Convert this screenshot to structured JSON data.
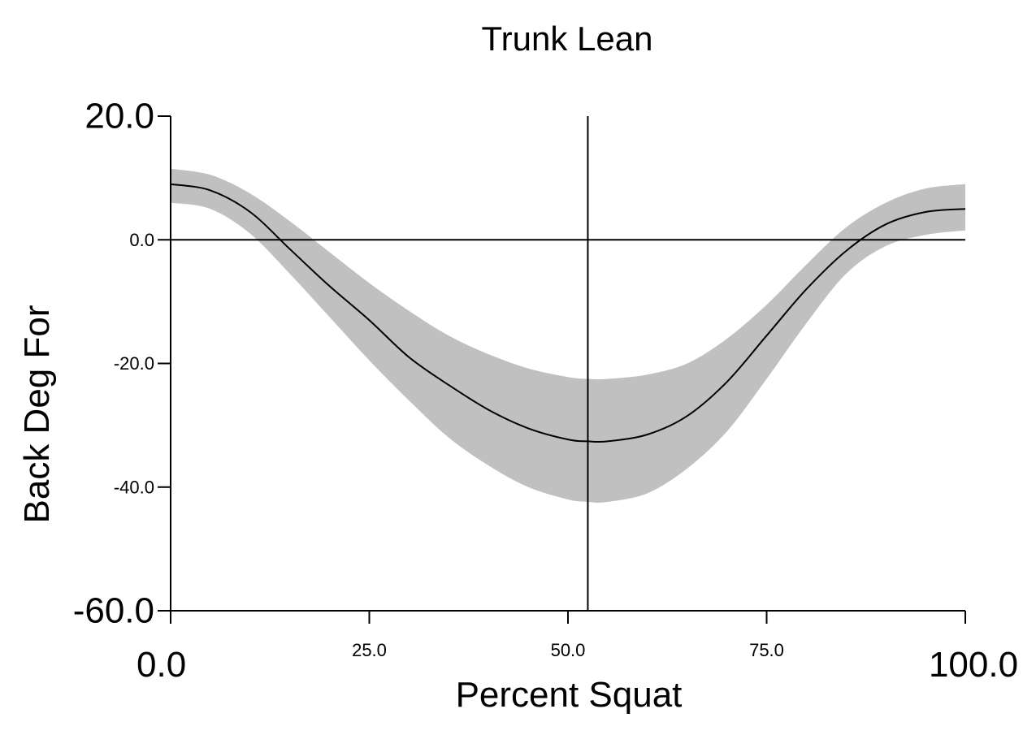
{
  "chart_data": {
    "type": "line",
    "title": "Trunk Lean",
    "xlabel": "Percent Squat",
    "ylabel": "Back Deg For",
    "xlim": [
      0,
      100
    ],
    "ylim": [
      -60,
      20
    ],
    "x_ticks": [
      {
        "value": 0,
        "label": "0.0",
        "size": "major"
      },
      {
        "value": 25,
        "label": "25.0",
        "size": "minor"
      },
      {
        "value": 50,
        "label": "50.0",
        "size": "minor"
      },
      {
        "value": 75,
        "label": "75.0",
        "size": "minor"
      },
      {
        "value": 100,
        "label": "100.0",
        "size": "major"
      }
    ],
    "y_ticks": [
      {
        "value": 20,
        "label": "20.0",
        "size": "major"
      },
      {
        "value": 0,
        "label": "0.0",
        "size": "minor"
      },
      {
        "value": -20,
        "label": "-20.0",
        "size": "minor"
      },
      {
        "value": -40,
        "label": "-40.0",
        "size": "minor"
      },
      {
        "value": -60,
        "label": "-60.0",
        "size": "major"
      }
    ],
    "reference_lines": {
      "horizontal_y": 0,
      "vertical_x": 52.5
    },
    "mean": {
      "x": [
        0,
        5,
        10,
        15,
        20,
        25,
        30,
        35,
        40,
        45,
        50,
        52.5,
        55,
        60,
        65,
        70,
        75,
        80,
        85,
        90,
        95,
        100
      ],
      "y": [
        9,
        8,
        4.5,
        -1.5,
        -7.5,
        -13,
        -19,
        -23.5,
        -27.5,
        -30.5,
        -32.3,
        -32.6,
        -32.6,
        -31.5,
        -28.5,
        -23,
        -15.5,
        -8,
        -1.8,
        2.5,
        4.5,
        5
      ]
    },
    "band": {
      "x": [
        0,
        5,
        10,
        15,
        20,
        25,
        30,
        35,
        40,
        45,
        50,
        52.5,
        55,
        60,
        65,
        70,
        75,
        80,
        85,
        90,
        95,
        100
      ],
      "upper": [
        11.5,
        10.5,
        7.5,
        3,
        -2,
        -7,
        -11.5,
        -15.5,
        -18.5,
        -20.8,
        -22.2,
        -22.5,
        -22.5,
        -21.8,
        -20,
        -16,
        -10.5,
        -4,
        2,
        6,
        8.3,
        9
      ],
      "lower": [
        6,
        5,
        1,
        -5.5,
        -12.5,
        -19.5,
        -26,
        -32,
        -36.5,
        -40,
        -42,
        -42.4,
        -42.4,
        -41,
        -37,
        -31,
        -22.5,
        -13.5,
        -5.5,
        -1,
        0.8,
        1.5
      ]
    },
    "colors": {
      "band": "#c0c0c0",
      "line": "#000000"
    },
    "grid": false,
    "legend": "none"
  }
}
